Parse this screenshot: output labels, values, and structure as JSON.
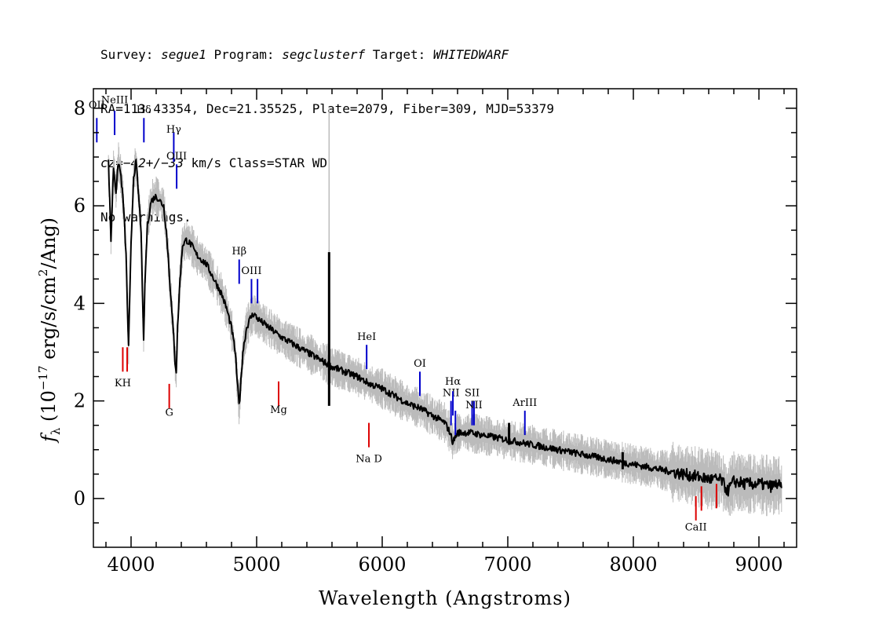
{
  "header": {
    "line1": {
      "survey_label": "Survey: ",
      "survey": "segue1",
      "program_label": " Program: ",
      "program": "segclusterf",
      "target_label": " Target: ",
      "target": "WHITEDWARF"
    },
    "line2": "RA=113.43354, Dec=21.35525, Plate=2079, Fiber=309, MJD=53379",
    "line3": {
      "cz": "cz=−42+/−33",
      "rest": " km/s Class=STAR WD"
    },
    "line4": "No warnings."
  },
  "chart_data": {
    "type": "line",
    "title": "",
    "xlabel": "Wavelength (Angstroms)",
    "ylabel": "f_λ (10^−17 erg/s/cm²/Ang)",
    "xlim": [
      3700,
      9300
    ],
    "ylim": [
      -1,
      8.4
    ],
    "x_ticks": [
      4000,
      5000,
      6000,
      7000,
      8000,
      9000
    ],
    "x_tick_labels": [
      "4000",
      "5000",
      "6000",
      "7000",
      "8000",
      "9000"
    ],
    "y_ticks": [
      0,
      2,
      4,
      6,
      8
    ],
    "y_tick_labels": [
      "0",
      "2",
      "4",
      "6",
      "8"
    ],
    "grid": false,
    "series": [
      {
        "role": "flux",
        "color": "#000000",
        "x": [
          3820,
          3840,
          3860,
          3880,
          3900,
          3920,
          3940,
          3960,
          3970,
          3980,
          4000,
          4020,
          4040,
          4060,
          4080,
          4090,
          4101,
          4110,
          4130,
          4160,
          4200,
          4230,
          4260,
          4280,
          4300,
          4320,
          4340,
          4350,
          4361,
          4370,
          4390,
          4410,
          4440,
          4480,
          4520,
          4560,
          4600,
          4640,
          4680,
          4720,
          4760,
          4800,
          4830,
          4845,
          4861,
          4875,
          4890,
          4920,
          4950,
          4980,
          5000,
          5050,
          5100,
          5150,
          5200,
          5300,
          5400,
          5500,
          5600,
          5700,
          5800,
          5900,
          6000,
          6100,
          6200,
          6300,
          6400,
          6500,
          6540,
          6563,
          6580,
          6600,
          6700,
          6800,
          6900,
          7000,
          7100,
          7200,
          7300,
          7400,
          7500,
          7600,
          7700,
          7800,
          7900,
          8000,
          8100,
          8200,
          8300,
          8400,
          8500,
          8600,
          8700,
          8750,
          8800,
          8900,
          9000,
          9100,
          9150,
          9180
        ],
        "y": [
          6.9,
          5.3,
          6.8,
          6.3,
          6.9,
          6.6,
          6.0,
          5.0,
          4.0,
          3.1,
          5.2,
          6.6,
          6.9,
          6.2,
          5.5,
          4.2,
          3.2,
          4.4,
          5.6,
          6.1,
          6.2,
          6.1,
          6.0,
          5.5,
          4.8,
          4.0,
          3.3,
          2.8,
          2.6,
          3.5,
          4.5,
          5.2,
          5.3,
          5.2,
          5.0,
          4.9,
          4.8,
          4.6,
          4.4,
          4.2,
          3.9,
          3.5,
          3.0,
          2.4,
          1.9,
          2.4,
          3.0,
          3.5,
          3.7,
          3.8,
          3.7,
          3.6,
          3.5,
          3.4,
          3.3,
          3.15,
          3.0,
          2.85,
          2.7,
          2.6,
          2.5,
          2.35,
          2.25,
          2.1,
          1.95,
          1.85,
          1.7,
          1.55,
          1.35,
          1.15,
          1.25,
          1.35,
          1.35,
          1.3,
          1.25,
          1.2,
          1.15,
          1.1,
          1.05,
          1.0,
          0.95,
          0.9,
          0.85,
          0.8,
          0.75,
          0.7,
          0.65,
          0.6,
          0.55,
          0.5,
          0.45,
          0.4,
          0.38,
          0.15,
          0.35,
          0.3,
          0.3,
          0.25,
          0.3,
          0.2
        ]
      },
      {
        "role": "error",
        "color": "#bbbbbb",
        "note": "grey noise envelope around flux"
      }
    ],
    "spikes": [
      {
        "x": 5577,
        "y0": 1.9,
        "y1": 5.05,
        "color": "#000000"
      },
      {
        "x": 7010,
        "y0": 1.1,
        "y1": 1.55,
        "color": "#000000"
      },
      {
        "x": 7915,
        "y0": 0.6,
        "y1": 0.95,
        "color": "#000000"
      }
    ],
    "grey_spike": {
      "x": 5577,
      "y0": 1.9,
      "y1": 8.0
    },
    "emission_lines": [
      {
        "label": "OII",
        "x": 3727,
        "y0": 7.3,
        "y1": 7.8,
        "label_y": 8.0
      },
      {
        "label": "NeIII",
        "x": 3869,
        "y0": 7.45,
        "y1": 7.95,
        "label_y": 8.1
      },
      {
        "label": "Hδ",
        "x": 4102,
        "y0": 7.3,
        "y1": 7.8,
        "label_y": 7.9
      },
      {
        "label": "Hγ",
        "x": 4340,
        "y0": 6.9,
        "y1": 7.5,
        "label_y": 7.5
      },
      {
        "label": "OIII",
        "x": 4363,
        "y0": 6.35,
        "y1": 6.85,
        "label_y": 6.95
      },
      {
        "label": "Hβ",
        "x": 4861,
        "y0": 4.4,
        "y1": 4.9,
        "label_y": 5.0
      },
      {
        "label": "OIII",
        "x": 4959,
        "y0": 4.0,
        "y1": 4.5,
        "label_y": 4.6
      },
      {
        "label": "",
        "x": 5007,
        "y0": 4.0,
        "y1": 4.5,
        "label_y": 4.6
      },
      {
        "label": "HeI",
        "x": 5876,
        "y0": 2.65,
        "y1": 3.15,
        "label_y": 3.25
      },
      {
        "label": "OI",
        "x": 6300,
        "y0": 2.1,
        "y1": 2.6,
        "label_y": 2.7
      },
      {
        "label": "NII",
        "x": 6548,
        "y0": 1.5,
        "y1": 2.0,
        "label_y": 2.1
      },
      {
        "label": "Hα",
        "x": 6563,
        "y0": 1.7,
        "y1": 2.2,
        "label_y": 2.33
      },
      {
        "label": "",
        "x": 6583,
        "y0": 1.3,
        "y1": 1.8,
        "label_y": 1.9
      },
      {
        "label": "SII",
        "x": 6716,
        "y0": 1.5,
        "y1": 2.0,
        "label_y": 2.1
      },
      {
        "label": "NII",
        "x": 6731,
        "y0": 1.5,
        "y1": 2.0,
        "label_y": 1.85
      },
      {
        "label": "ArIII",
        "x": 7136,
        "y0": 1.3,
        "y1": 1.8,
        "label_y": 1.9
      }
    ],
    "absorption_lines": [
      {
        "label": "KH",
        "x": 3934,
        "y0": 2.6,
        "y1": 3.1,
        "label_y": 2.3
      },
      {
        "label": "",
        "x": 3969,
        "y0": 2.6,
        "y1": 3.1,
        "label_y": 2.3
      },
      {
        "label": "G",
        "x": 4304,
        "y0": 1.85,
        "y1": 2.35,
        "label_y": 1.7
      },
      {
        "label": "Mg",
        "x": 5175,
        "y0": 1.9,
        "y1": 2.4,
        "label_y": 1.75
      },
      {
        "label": "Na D",
        "x": 5894,
        "y0": 1.05,
        "y1": 1.55,
        "label_y": 0.75
      },
      {
        "label": "CaII",
        "x": 8498,
        "y0": -0.45,
        "y1": 0.05,
        "label_y": -0.65
      },
      {
        "label": "",
        "x": 8542,
        "y0": -0.25,
        "y1": 0.25,
        "label_y": -0.65
      },
      {
        "label": "",
        "x": 8662,
        "y0": -0.2,
        "y1": 0.3,
        "label_y": -0.65
      }
    ],
    "colors": {
      "emission": "#0000cc",
      "absorption": "#dd0000",
      "flux": "#000000",
      "error": "#bbbbbb"
    }
  }
}
